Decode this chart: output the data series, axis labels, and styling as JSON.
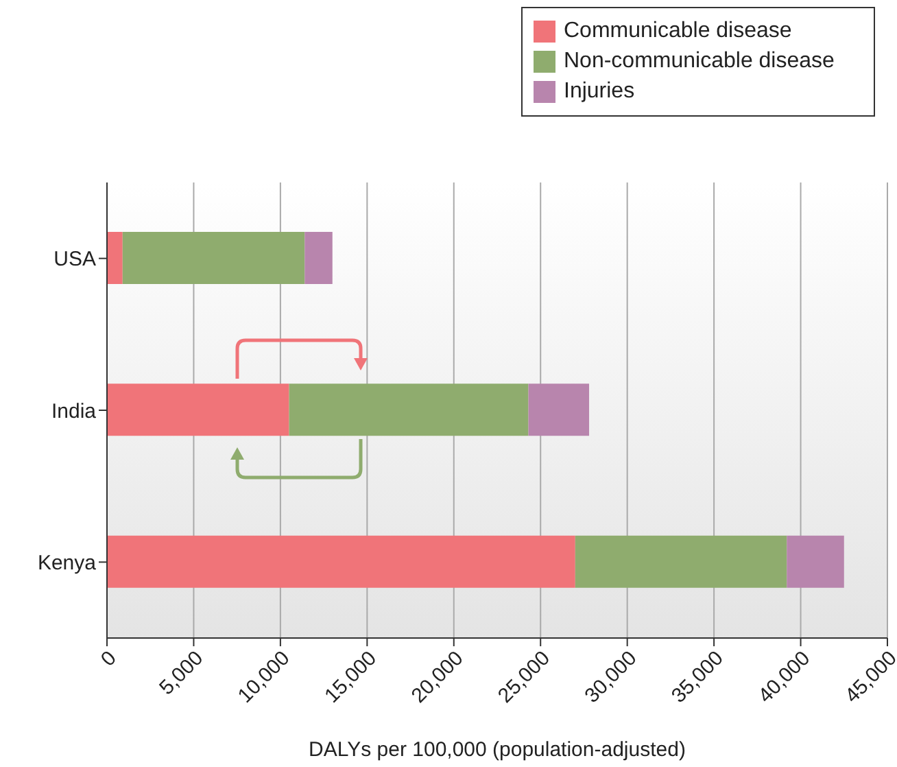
{
  "chart_data": {
    "type": "bar",
    "orientation": "horizontal",
    "stacked": true,
    "xlabel": "DALYs per 100,000 (population-adjusted)",
    "categories": [
      "USA",
      "India",
      "Kenya"
    ],
    "series": [
      {
        "name": "Communicable disease",
        "color": "#f07479",
        "values": [
          900,
          10500,
          27000
        ]
      },
      {
        "name": "Non-communicable disease",
        "color": "#8fac6e",
        "values": [
          10500,
          13800,
          12200
        ]
      },
      {
        "name": "Injuries",
        "color": "#b885ad",
        "values": [
          1600,
          3500,
          3300
        ]
      }
    ],
    "xlim": [
      0,
      45000
    ],
    "xticks": [
      0,
      {
        "value": 5000,
        "label": "5,000"
      },
      {
        "value": 10000,
        "label": "10,000"
      },
      {
        "value": 15000,
        "label": "15,000"
      },
      {
        "value": 20000,
        "label": "20,000"
      },
      {
        "value": 25000,
        "label": "25,000"
      },
      {
        "value": 30000,
        "label": "30,000"
      },
      {
        "value": 35000,
        "label": "35,000"
      },
      {
        "value": 40000,
        "label": "40,000"
      },
      {
        "value": 45000,
        "label": "45,000"
      }
    ],
    "grid": "x",
    "legend": "top right"
  }
}
